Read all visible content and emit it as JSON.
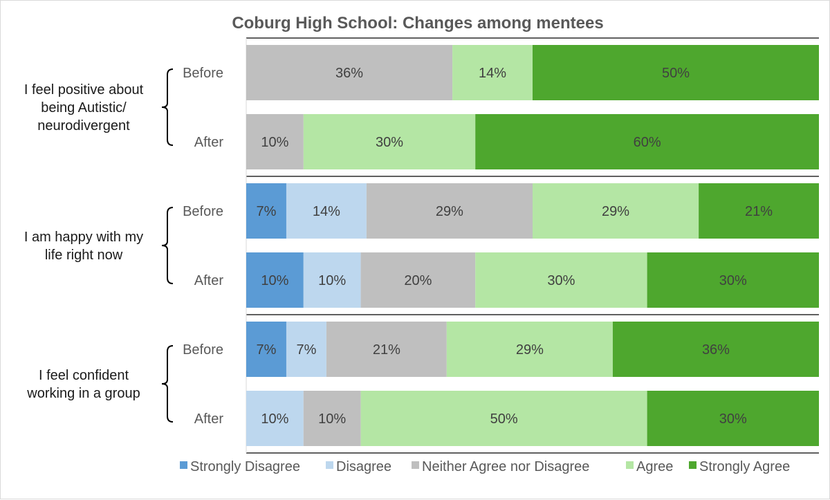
{
  "chart_data": {
    "type": "bar",
    "orientation": "horizontal",
    "stacked": true,
    "percent": true,
    "title": "Coburg High School: Changes among mentees",
    "xlim": [
      0,
      100
    ],
    "legend_position": "bottom",
    "series": [
      {
        "name": "Strongly Disagree",
        "color": "#5b9bd5"
      },
      {
        "name": "Disagree",
        "color": "#bdd7ee"
      },
      {
        "name": "Neither Agree nor Disagree",
        "color": "#bfbfbf"
      },
      {
        "name": "Agree",
        "color": "#b4e6a4"
      },
      {
        "name": "Strongly Agree",
        "color": "#4ea72e"
      }
    ],
    "groups": [
      {
        "question": [
          "I feel positive about",
          "being Autistic/",
          "neurodivergent"
        ],
        "rows": [
          {
            "label": "Before",
            "values": [
              0,
              0,
              36,
              14,
              50
            ]
          },
          {
            "label": "After",
            "values": [
              0,
              0,
              10,
              30,
              60
            ]
          }
        ]
      },
      {
        "question": [
          "I am happy with my",
          "life right now"
        ],
        "rows": [
          {
            "label": "Before",
            "values": [
              7,
              14,
              29,
              29,
              21
            ]
          },
          {
            "label": "After",
            "values": [
              10,
              10,
              20,
              30,
              30
            ]
          }
        ]
      },
      {
        "question": [
          "I feel confident",
          "working in a group"
        ],
        "rows": [
          {
            "label": "Before",
            "values": [
              7,
              7,
              21,
              29,
              36
            ]
          },
          {
            "label": "After",
            "values": [
              0,
              10,
              10,
              50,
              30
            ]
          }
        ]
      }
    ]
  }
}
